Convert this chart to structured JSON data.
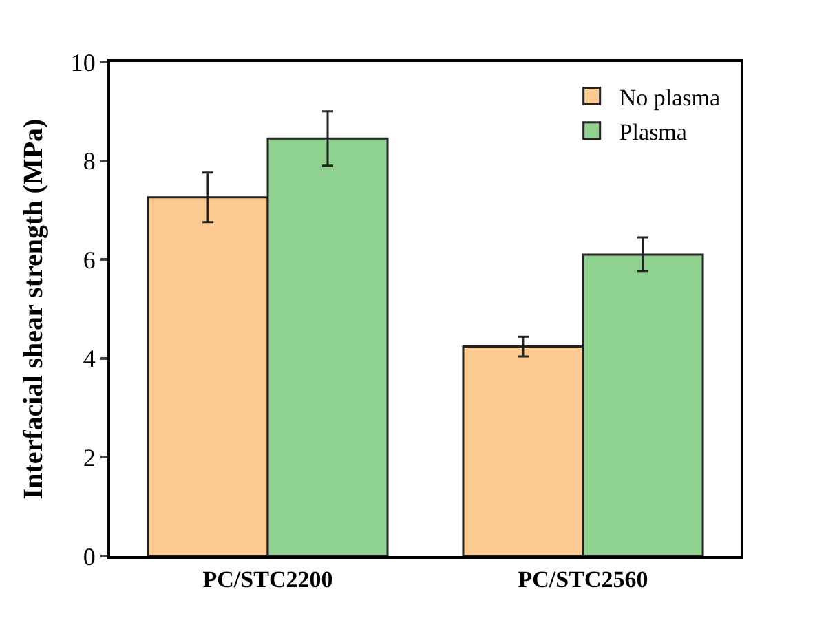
{
  "chart_data": {
    "type": "bar",
    "ylabel": "Interfacial shear strength (MPa)",
    "categories": [
      "PC/STC2200",
      "PC/STC2560"
    ],
    "series": [
      {
        "name": "No plasma",
        "color": "#fdca92",
        "values": [
          7.26,
          4.24
        ],
        "errors": [
          0.5,
          0.2
        ]
      },
      {
        "name": "Plasma",
        "color": "#8fd18f",
        "values": [
          8.45,
          6.1
        ],
        "errors": [
          [
            7.9,
            9.0
          ],
          [
            5.77,
            6.45
          ]
        ]
      }
    ],
    "ylim": [
      0,
      10
    ],
    "yticks": [
      0,
      2,
      4,
      6,
      8,
      10
    ],
    "legend": "top right"
  }
}
